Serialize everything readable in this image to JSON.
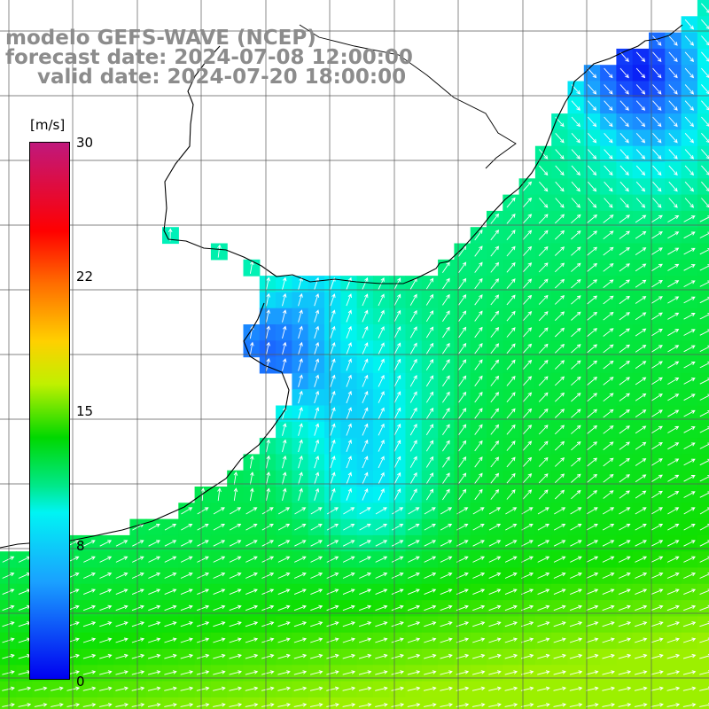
{
  "title": {
    "line1": "modelo GEFS-WAVE (NCEP)",
    "line2": "forecast date: 2024-07-08 12:00:00",
    "line3": "valid date: 2024-07-20 18:00:00"
  },
  "colorbar": {
    "unit": "[m/s]",
    "ticks": [
      "30",
      "22",
      "15",
      "8",
      "0"
    ],
    "colors": [
      "#c0187c",
      "#ff0000",
      "#ff6a00",
      "#ffd000",
      "#00d800",
      "#00f4f4",
      "#1aa0ff",
      "#0000f0"
    ]
  },
  "colors": {
    "land": "#ffffff",
    "coastline": "#000000",
    "grid": "#555555",
    "arrow": "#ffffff",
    "label": "#9a9a9a"
  }
}
